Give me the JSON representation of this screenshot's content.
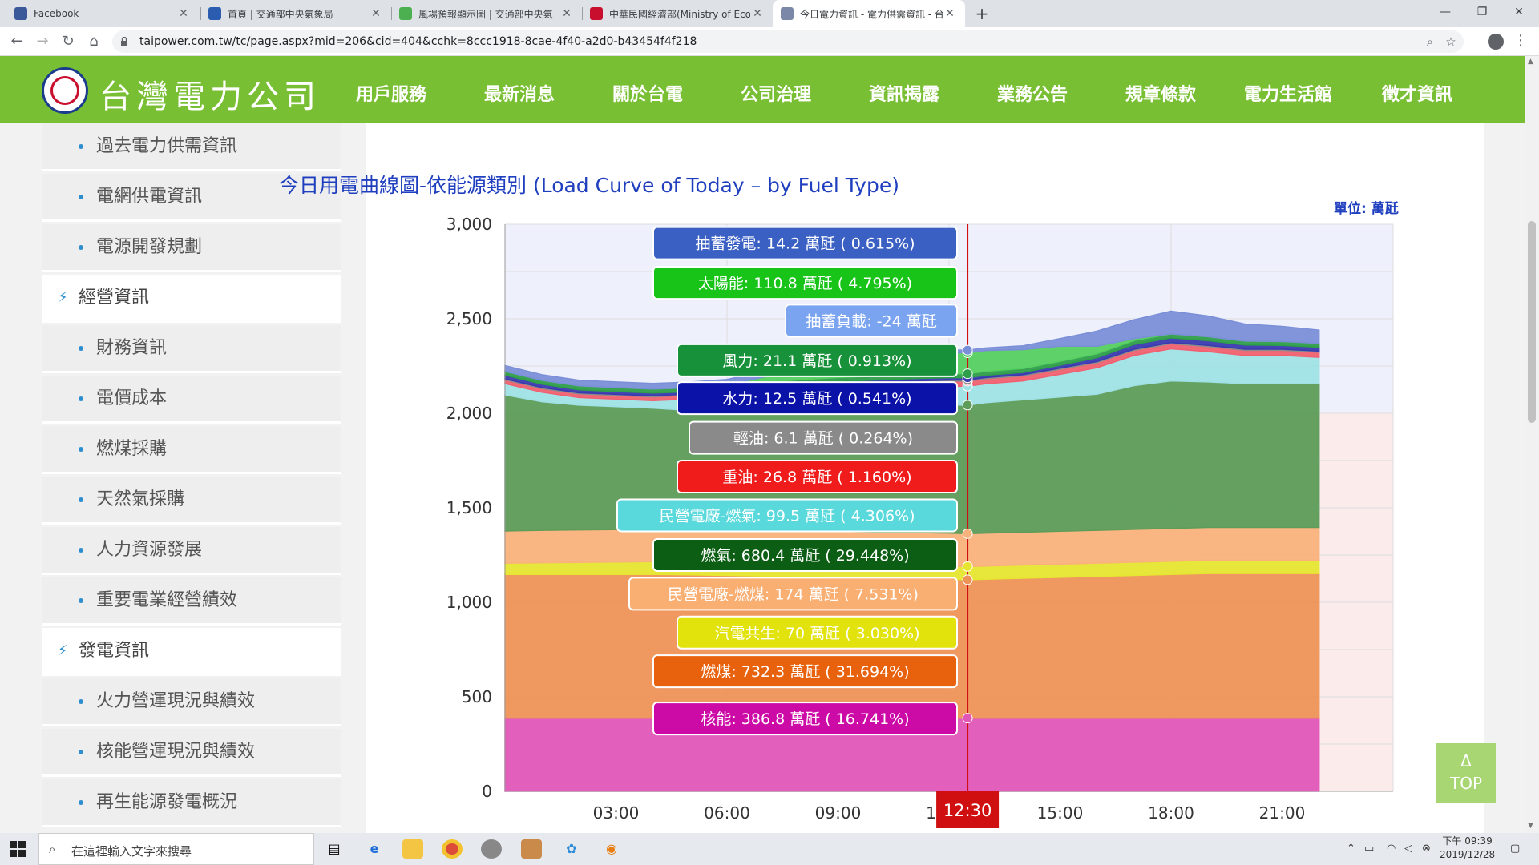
{
  "browser": {
    "tabs": [
      {
        "title": "Facebook",
        "favicon_color": "#3b5998"
      },
      {
        "title": "首頁 | 交通部中央氣象局",
        "favicon_color": "#2a5db0"
      },
      {
        "title": "風場預報顯示圖 | 交通部中央氣",
        "favicon_color": "#4caf50"
      },
      {
        "title": "中華民國經濟部(Ministry of Econ",
        "favicon_color": "#c8102e"
      },
      {
        "title": "今日電力資訊 - 電力供需資訊 - 台",
        "favicon_color": "#7b88a8"
      }
    ],
    "active_tab": 4,
    "url": "taipower.com.tw/tc/page.aspx?mid=206&cid=404&cchk=8ccc1918-8cae-4f40-a2d0-b43454f4f218"
  },
  "site": {
    "logo_text": "台灣電力公司",
    "nav": [
      "用戶服務",
      "最新消息",
      "關於台電",
      "公司治理",
      "資訊揭露",
      "業務公告",
      "規章條款",
      "電力生活館",
      "徵才資訊"
    ],
    "active_nav": 4
  },
  "sidebar": {
    "items": [
      {
        "label": "過去電力供需資訊",
        "category": false
      },
      {
        "label": "電網供電資訊",
        "category": false
      },
      {
        "label": "電源開發規劃",
        "category": false
      },
      {
        "label": "經營資訊",
        "category": true
      },
      {
        "label": "財務資訊",
        "category": false
      },
      {
        "label": "電價成本",
        "category": false
      },
      {
        "label": "燃煤採購",
        "category": false
      },
      {
        "label": "天然氣採購",
        "category": false
      },
      {
        "label": "人力資源發展",
        "category": false
      },
      {
        "label": "重要電業經營績效",
        "category": false
      },
      {
        "label": "發電資訊",
        "category": true
      },
      {
        "label": "火力營運現況與績效",
        "category": false
      },
      {
        "label": "核能營運現況與績效",
        "category": false
      },
      {
        "label": "再生能源發電概況",
        "category": false
      }
    ]
  },
  "chart_data": {
    "type": "area",
    "stacked": true,
    "title": "今日用電曲線圖-依能源類別 (Load Curve of Today – by Fuel Type)",
    "unit_label": "單位: 萬瓩",
    "ylim": [
      0,
      3000
    ],
    "y_ticks": [
      "0",
      "500",
      "1,000",
      "1,500",
      "2,000",
      "2,500",
      "3,000"
    ],
    "xlim_hours": [
      0,
      24
    ],
    "x_ticks": [
      "03:00",
      "06:00",
      "09:00",
      "12:00",
      "15:00",
      "18:00",
      "21:00"
    ],
    "cursor_time": "12:30",
    "x": [
      0,
      1,
      2,
      3,
      4,
      5,
      6,
      7,
      8,
      9,
      10,
      11,
      12,
      12.5,
      13,
      14,
      15,
      16,
      17,
      18,
      19,
      20,
      21,
      22
    ],
    "series": [
      {
        "name": "核能",
        "color": "#e057b8",
        "values": [
          387,
          387,
          387,
          387,
          387,
          387,
          387,
          387,
          387,
          387,
          387,
          387,
          387,
          387,
          387,
          387,
          387,
          387,
          387,
          387,
          387,
          387,
          387,
          387
        ]
      },
      {
        "name": "燃煤",
        "color": "#ee9358",
        "values": [
          760,
          760,
          760,
          760,
          760,
          758,
          755,
          752,
          748,
          745,
          742,
          738,
          735,
          732,
          735,
          740,
          745,
          750,
          755,
          760,
          765,
          765,
          765,
          765
        ]
      },
      {
        "name": "汽電共生",
        "color": "#e6e632",
        "values": [
          60,
          62,
          64,
          66,
          68,
          68,
          68,
          68,
          70,
          70,
          70,
          70,
          70,
          70,
          70,
          70,
          70,
          70,
          70,
          70,
          70,
          70,
          70,
          70
        ]
      },
      {
        "name": "民營電廠-燃煤",
        "color": "#f9b27c",
        "values": [
          170,
          172,
          172,
          172,
          172,
          172,
          172,
          172,
          173,
          173,
          173,
          174,
          174,
          174,
          174,
          174,
          174,
          174,
          174,
          174,
          174,
          174,
          174,
          174
        ]
      },
      {
        "name": "燃氣",
        "color": "#5d9c59",
        "values": [
          720,
          680,
          660,
          650,
          640,
          630,
          620,
          630,
          640,
          650,
          660,
          670,
          678,
          680,
          690,
          700,
          710,
          720,
          760,
          780,
          770,
          760,
          760,
          760
        ]
      },
      {
        "name": "民營電廠-燃氣",
        "color": "#9fe1e5",
        "values": [
          60,
          50,
          40,
          40,
          40,
          60,
          80,
          90,
          95,
          98,
          99,
          99,
          99,
          100,
          100,
          100,
          120,
          140,
          160,
          170,
          160,
          150,
          150,
          140
        ]
      },
      {
        "name": "重油",
        "color": "#f06070",
        "values": [
          20,
          20,
          20,
          20,
          20,
          22,
          24,
          25,
          26,
          27,
          27,
          27,
          27,
          27,
          27,
          27,
          27,
          27,
          27,
          27,
          27,
          27,
          27,
          27
        ]
      },
      {
        "name": "輕油",
        "color": "#8c8c8c",
        "values": [
          5,
          5,
          5,
          5,
          5,
          5,
          5,
          5,
          6,
          6,
          6,
          6,
          6,
          6,
          6,
          6,
          6,
          6,
          6,
          6,
          6,
          6,
          6,
          6
        ]
      },
      {
        "name": "水力",
        "color": "#3a3ab0",
        "values": [
          20,
          18,
          16,
          15,
          15,
          12,
          12,
          12,
          12,
          12,
          12,
          12,
          12,
          12,
          12,
          12,
          15,
          20,
          25,
          25,
          25,
          22,
          20,
          20
        ]
      },
      {
        "name": "風力",
        "color": "#2e9e4a",
        "values": [
          20,
          20,
          21,
          21,
          21,
          21,
          21,
          21,
          21,
          21,
          21,
          21,
          21,
          21,
          21,
          21,
          21,
          21,
          21,
          21,
          21,
          21,
          21,
          21
        ]
      },
      {
        "name": "太陽能",
        "color": "#55d060",
        "values": [
          0,
          0,
          0,
          0,
          0,
          0,
          5,
          30,
          60,
          90,
          105,
          110,
          111,
          111,
          110,
          100,
          80,
          40,
          10,
          0,
          0,
          0,
          0,
          0
        ]
      },
      {
        "name": "抽蓄發電",
        "color": "#7b8fd8",
        "values": [
          30,
          30,
          30,
          30,
          30,
          30,
          30,
          30,
          20,
          15,
          14,
          14,
          14,
          14,
          14,
          20,
          40,
          80,
          100,
          120,
          110,
          90,
          80,
          70
        ]
      }
    ],
    "tooltips": [
      {
        "text": "抽蓄發電: 14.2 萬瓩 ( 0.615%)",
        "bg": "#3b60c4",
        "fg": "#ffffff",
        "y": 2900
      },
      {
        "text": "太陽能: 110.8 萬瓩 ( 4.795%)",
        "bg": "#19c419",
        "fg": "#ffffff",
        "y": 2690
      },
      {
        "text": "抽蓄負載: -24 萬瓩",
        "bg": "#7aa3f0",
        "fg": "#ffffff",
        "y": 2490
      },
      {
        "text": "風力: 21.1 萬瓩 ( 0.913%)",
        "bg": "#17913a",
        "fg": "#ffffff",
        "y": 2280
      },
      {
        "text": "水力: 12.5 萬瓩 ( 0.541%)",
        "bg": "#0b12a8",
        "fg": "#ffffff",
        "y": 2080
      },
      {
        "text": "輕油: 6.1 萬瓩 ( 0.264%)",
        "bg": "#8a8a8a",
        "fg": "#ffffff",
        "y": 1870
      },
      {
        "text": "重油: 26.8 萬瓩 ( 1.160%)",
        "bg": "#f01c1c",
        "fg": "#ffffff",
        "y": 1665
      },
      {
        "text": "民營電廠-燃氣: 99.5 萬瓩 ( 4.306%)",
        "bg": "#5ad9dc",
        "fg": "#ffffff",
        "y": 1460
      },
      {
        "text": "燃氣: 680.4 萬瓩 ( 29.448%)",
        "bg": "#0b5e13",
        "fg": "#ffffff",
        "y": 1250
      },
      {
        "text": "民營電廠-燃煤: 174 萬瓩 ( 7.531%)",
        "bg": "#f9ae72",
        "fg": "#ffffff",
        "y": 1045
      },
      {
        "text": "汽電共生: 70 萬瓩 ( 3.030%)",
        "bg": "#e2e20c",
        "fg": "#ffffff",
        "y": 840
      },
      {
        "text": "燃煤: 732.3 萬瓩 ( 31.694%)",
        "bg": "#e8620e",
        "fg": "#ffffff",
        "y": 635
      },
      {
        "text": "核能: 386.8 萬瓩 ( 16.741%)",
        "bg": "#cc0aa6",
        "fg": "#ffffff",
        "y": 385
      }
    ]
  },
  "top_button": {
    "arrow": "Δ",
    "label": "TOP"
  },
  "taskbar": {
    "search_placeholder": "在這裡輸入文字來搜尋",
    "time": "下午 09:39",
    "date": "2019/12/28"
  }
}
